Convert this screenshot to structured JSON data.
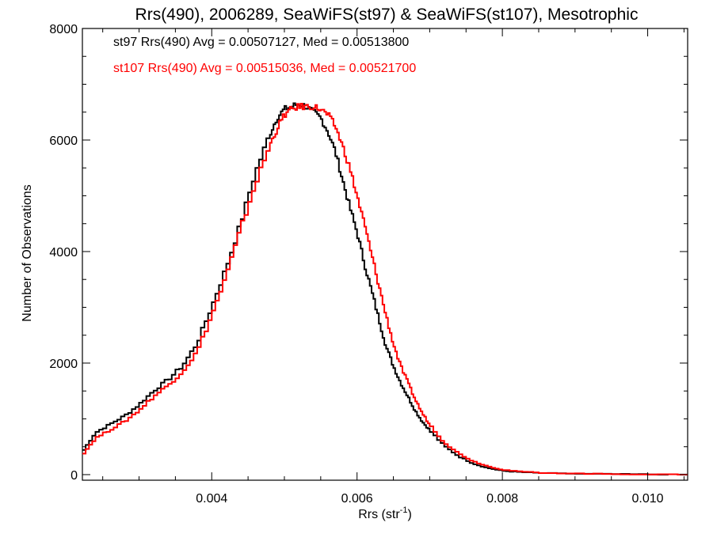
{
  "chart_data": {
    "type": "line",
    "title": "Rrs(490), 2006289, SeaWiFS(st97) & SeaWiFS(st107), Mesotrophic",
    "xlabel_base": "Rrs (str",
    "xlabel_sup": "-1",
    "xlabel_close": ")",
    "ylabel": "Number of Observations",
    "xlim": [
      0.00222,
      0.01055
    ],
    "ylim": [
      -100,
      8000
    ],
    "xticks": [
      0.004,
      0.006,
      0.008,
      0.01
    ],
    "xtick_labels": [
      "0.004",
      "0.006",
      "0.008",
      "0.010"
    ],
    "yticks": [
      0,
      2000,
      4000,
      6000,
      8000
    ],
    "ytick_labels": [
      "0",
      "2000",
      "4000",
      "6000",
      "8000"
    ],
    "grid": false,
    "annotations": [
      {
        "text": "st97 Rrs(490) Avg = 0.00507127, Med = 0.00513800",
        "color": "#000000"
      },
      {
        "text": "st107 Rrs(490) Avg = 0.00515036, Med = 0.00521700",
        "color": "#ff0000"
      }
    ],
    "series": [
      {
        "color": "#000000",
        "x": [
          0.00222,
          0.0024,
          0.0026,
          0.0028,
          0.003,
          0.0032,
          0.0034,
          0.0036,
          0.0038,
          0.004,
          0.0042,
          0.0044,
          0.0046,
          0.0048,
          0.0049,
          0.005,
          0.0051,
          0.0052,
          0.0053,
          0.0054,
          0.0055,
          0.0056,
          0.0057,
          0.0058,
          0.0059,
          0.006,
          0.0061,
          0.0062,
          0.0063,
          0.0064,
          0.0065,
          0.0066,
          0.0067,
          0.0068,
          0.0069,
          0.007,
          0.0072,
          0.0074,
          0.0076,
          0.0078,
          0.008,
          0.0082,
          0.0085,
          0.009,
          0.0095,
          0.01,
          0.01055
        ],
        "y": [
          400,
          750,
          900,
          1050,
          1250,
          1500,
          1700,
          1950,
          2350,
          3000,
          3700,
          4500,
          5400,
          6100,
          6400,
          6550,
          6600,
          6650,
          6600,
          6500,
          6400,
          6150,
          5800,
          5300,
          4800,
          4350,
          3800,
          3300,
          2800,
          2300,
          1950,
          1650,
          1400,
          1150,
          950,
          800,
          520,
          330,
          200,
          120,
          70,
          50,
          30,
          15,
          10,
          5,
          0
        ]
      },
      {
        "color": "#ff0000",
        "x": [
          0.00222,
          0.0024,
          0.0026,
          0.0028,
          0.003,
          0.0032,
          0.0034,
          0.0036,
          0.0038,
          0.004,
          0.0042,
          0.0044,
          0.0046,
          0.0048,
          0.0049,
          0.005,
          0.0051,
          0.0052,
          0.0053,
          0.0054,
          0.0055,
          0.0056,
          0.0057,
          0.0058,
          0.0059,
          0.006,
          0.0061,
          0.0062,
          0.0063,
          0.0064,
          0.0065,
          0.0066,
          0.0067,
          0.0068,
          0.0069,
          0.007,
          0.0072,
          0.0074,
          0.0076,
          0.0078,
          0.008,
          0.0082,
          0.0085,
          0.009,
          0.0095,
          0.01,
          0.01055
        ],
        "y": [
          350,
          650,
          800,
          950,
          1150,
          1400,
          1600,
          1850,
          2200,
          2850,
          3550,
          4400,
          5200,
          5900,
          6200,
          6450,
          6550,
          6600,
          6600,
          6600,
          6550,
          6450,
          6250,
          5900,
          5500,
          5000,
          4500,
          3950,
          3400,
          2850,
          2350,
          1950,
          1650,
          1350,
          1100,
          900,
          580,
          380,
          240,
          150,
          90,
          60,
          35,
          20,
          10,
          5,
          0
        ]
      }
    ]
  }
}
